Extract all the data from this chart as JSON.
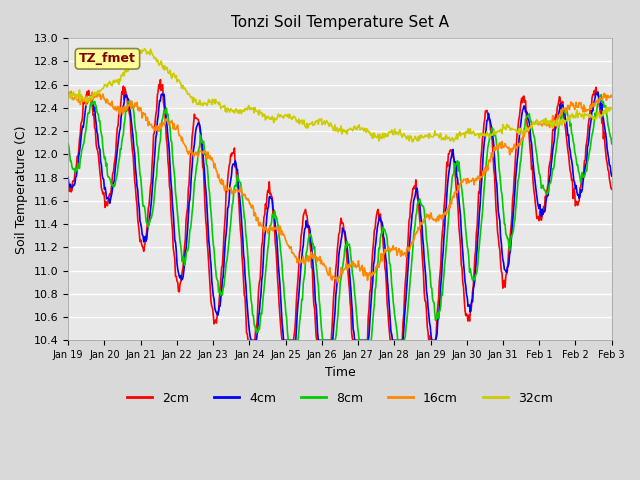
{
  "title": "Tonzi Soil Temperature Set A",
  "xlabel": "Time",
  "ylabel": "Soil Temperature (C)",
  "ylim": [
    10.4,
    13.0
  ],
  "legend_labels": [
    "2cm",
    "4cm",
    "8cm",
    "16cm",
    "32cm"
  ],
  "line_colors": [
    "#ff0000",
    "#0000ff",
    "#00cc00",
    "#ff8800",
    "#cccc00"
  ],
  "annotation_text": "TZ_fmet",
  "annotation_bg": "#ffff99",
  "annotation_fg": "#800000",
  "x_tick_labels": [
    "Jan 19",
    "Jan 20",
    "Jan 21",
    "Jan 22",
    "Jan 23",
    "Jan 24",
    "Jan 25",
    "Jan 26",
    "Jan 27",
    "Jan 28",
    "Jan 29",
    "Jan 30",
    "Jan 31",
    "Feb 1",
    "Feb 2",
    "Feb 3"
  ],
  "yticks": [
    10.4,
    10.6,
    10.8,
    11.0,
    11.2,
    11.4,
    11.6,
    11.8,
    12.0,
    12.2,
    12.4,
    12.6,
    12.8,
    13.0
  ]
}
